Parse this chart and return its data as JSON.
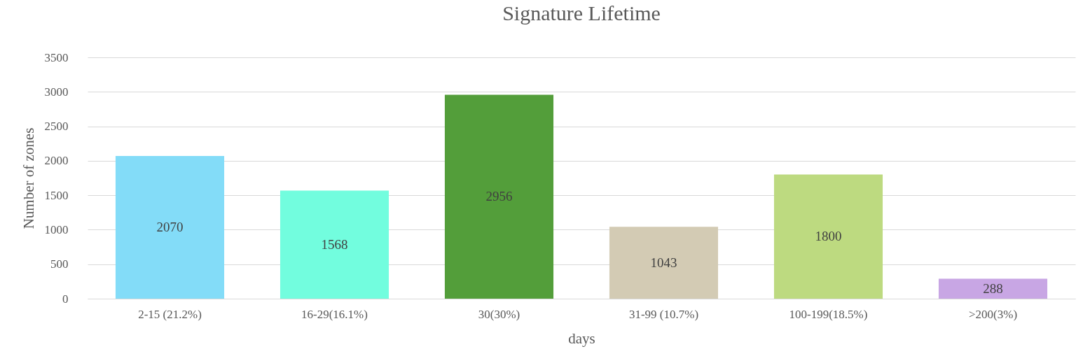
{
  "chart_data": {
    "type": "bar",
    "title": "Signature Lifetime",
    "xlabel": "days",
    "ylabel": "Number of zones",
    "categories": [
      "2-15 (21.2%)",
      "16-29(16.1%)",
      "30(30%)",
      "31-99 (10.7%)",
      "100-199(18.5%)",
      ">200(3%)"
    ],
    "values": [
      2070,
      1568,
      2956,
      1043,
      1800,
      288
    ],
    "colors": [
      "#83dcf8",
      "#72fdde",
      "#539e3a",
      "#d3cbb4",
      "#bdda80",
      "#c8a6e4"
    ],
    "ylim": [
      0,
      3500
    ],
    "yticks": [
      0,
      500,
      1000,
      1500,
      2000,
      2500,
      3000,
      3500
    ],
    "grid": "y",
    "data_labels": true
  }
}
